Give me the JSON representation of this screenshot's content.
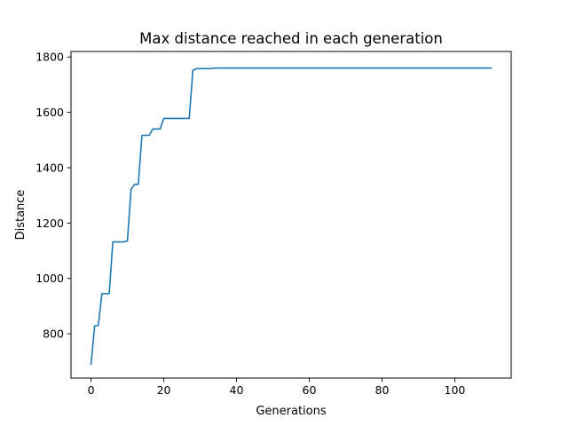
{
  "chart_data": {
    "type": "line",
    "title": "Max distance reached in each generation",
    "xlabel": "Generations",
    "ylabel": "Distance",
    "xlim": [
      -5.5,
      115.5
    ],
    "ylim": [
      640,
      1820
    ],
    "xticks": [
      0,
      20,
      40,
      60,
      80,
      100
    ],
    "yticks": [
      800,
      1000,
      1200,
      1400,
      1600,
      1800
    ],
    "grid": false,
    "legend": "none",
    "series": [
      {
        "color": "#1f77b4",
        "x": [
          0,
          1,
          2,
          3,
          4,
          5,
          6,
          7,
          8,
          9,
          10,
          11,
          12,
          13,
          14,
          15,
          16,
          17,
          18,
          19,
          20,
          21,
          22,
          23,
          24,
          25,
          26,
          27,
          28,
          29,
          30,
          31,
          32,
          33,
          34,
          110
        ],
        "y": [
          690,
          828,
          830,
          945,
          945,
          945,
          1132,
          1132,
          1132,
          1132,
          1135,
          1322,
          1340,
          1340,
          1517,
          1517,
          1517,
          1540,
          1540,
          1540,
          1578,
          1578,
          1578,
          1578,
          1578,
          1578,
          1578,
          1578,
          1752,
          1758,
          1758,
          1758,
          1758,
          1758,
          1760,
          1760
        ]
      }
    ]
  }
}
